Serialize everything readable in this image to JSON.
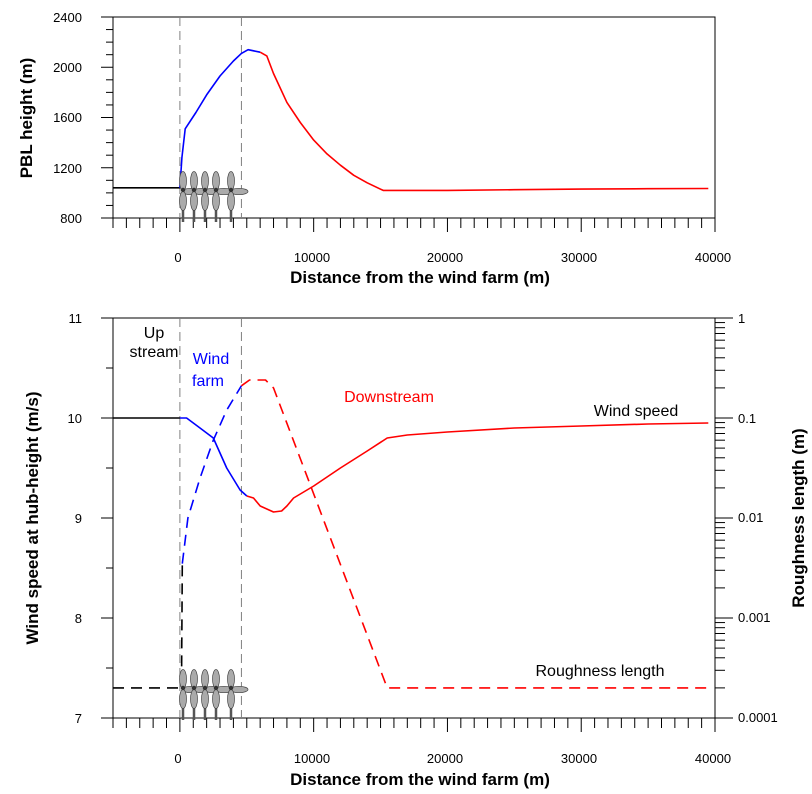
{
  "colors": {
    "upstream": "#000000",
    "wind_farm": "#0000ff",
    "downstream": "#ff0000",
    "farm_boundary": "#808080",
    "turbine": "#aaaaaa"
  },
  "chart_data": [
    {
      "type": "line",
      "title": "",
      "xlabel": "Distance from the wind farm (m)",
      "ylabel": "PBL height (m)",
      "xlim": [
        -5000,
        40000
      ],
      "ylim": [
        800,
        2400
      ],
      "x_ticks": [
        "0",
        "10000",
        "20000",
        "30000",
        "40000"
      ],
      "y_ticks": [
        "800",
        "1200",
        "1600",
        "2000",
        "2400"
      ],
      "wind_farm_boundaries": [
        0,
        4600
      ],
      "series": [
        {
          "region": "upstream",
          "color": "#000000",
          "style": "solid",
          "points": [
            [
              -5000,
              1040
            ],
            [
              0,
              1040
            ]
          ]
        },
        {
          "region": "wind farm",
          "color": "#0000ff",
          "style": "solid",
          "points": [
            [
              0,
              1040
            ],
            [
              150,
              1280
            ],
            [
              400,
              1510
            ],
            [
              1200,
              1640
            ],
            [
              2000,
              1780
            ],
            [
              3000,
              1930
            ],
            [
              4000,
              2050
            ],
            [
              4600,
              2110
            ],
            [
              5100,
              2140
            ],
            [
              6000,
              2120
            ]
          ]
        },
        {
          "region": "downstream",
          "color": "#ff0000",
          "style": "solid",
          "points": [
            [
              6000,
              2120
            ],
            [
              6500,
              2090
            ],
            [
              7000,
              1950
            ],
            [
              8000,
              1720
            ],
            [
              9000,
              1560
            ],
            [
              10000,
              1420
            ],
            [
              11000,
              1310
            ],
            [
              12000,
              1220
            ],
            [
              13000,
              1140
            ],
            [
              14000,
              1080
            ],
            [
              15200,
              1020
            ],
            [
              20000,
              1020
            ],
            [
              25000,
              1025
            ],
            [
              30000,
              1030
            ],
            [
              35000,
              1033
            ],
            [
              39500,
              1035
            ]
          ]
        }
      ]
    },
    {
      "type": "line",
      "title": "",
      "xlabel": "Distance from the wind farm (m)",
      "ylabel": "Wind speed at hub-height (m/s)",
      "y2label": "Roughness length (m)",
      "xlim": [
        -5000,
        40000
      ],
      "ylim": [
        7,
        11
      ],
      "y2lim": [
        0.0001,
        1
      ],
      "y2_scale": "log",
      "x_ticks": [
        "0",
        "10000",
        "20000",
        "30000",
        "40000"
      ],
      "y_ticks": [
        "7",
        "8",
        "9",
        "10",
        "11"
      ],
      "y2_ticks": [
        "0.0001",
        "0.001",
        "0.01",
        "0.1",
        "1"
      ],
      "wind_farm_boundaries": [
        0,
        4600
      ],
      "annotations": [
        {
          "text": "Up",
          "color": "#000000"
        },
        {
          "text": "stream",
          "color": "#000000"
        },
        {
          "text": "Wind",
          "color": "#0000ff"
        },
        {
          "text": "farm",
          "color": "#0000ff"
        },
        {
          "text": "Downstream",
          "color": "#ff0000"
        },
        {
          "text": "Wind speed",
          "color": "#000000"
        },
        {
          "text": "Roughness length",
          "color": "#000000"
        }
      ],
      "series": [
        {
          "name": "Wind speed",
          "region": "upstream",
          "axis": "left",
          "color": "#000000",
          "style": "solid",
          "points": [
            [
              -5000,
              10.0
            ],
            [
              0,
              10.0
            ]
          ]
        },
        {
          "name": "Wind speed",
          "region": "wind farm",
          "axis": "left",
          "color": "#0000ff",
          "style": "solid",
          "points": [
            [
              0,
              10.0
            ],
            [
              500,
              10.0
            ],
            [
              1500,
              9.9
            ],
            [
              2500,
              9.8
            ],
            [
              3500,
              9.5
            ],
            [
              4500,
              9.28
            ],
            [
              5000,
              9.22
            ]
          ]
        },
        {
          "name": "Wind speed",
          "region": "downstream",
          "axis": "left",
          "color": "#ff0000",
          "style": "solid",
          "points": [
            [
              5000,
              9.22
            ],
            [
              5500,
              9.2
            ],
            [
              6000,
              9.12
            ],
            [
              7000,
              9.06
            ],
            [
              7600,
              9.07
            ],
            [
              8000,
              9.12
            ],
            [
              8500,
              9.2
            ],
            [
              10000,
              9.32
            ],
            [
              12000,
              9.5
            ],
            [
              14000,
              9.67
            ],
            [
              15500,
              9.8
            ],
            [
              17000,
              9.83
            ],
            [
              20000,
              9.86
            ],
            [
              25000,
              9.9
            ],
            [
              30000,
              9.92
            ],
            [
              35000,
              9.94
            ],
            [
              39500,
              9.95
            ]
          ]
        },
        {
          "name": "Roughness length",
          "region": "upstream",
          "axis": "right",
          "color": "#000000",
          "style": "dashed",
          "points": [
            [
              -5000,
              0.0002
            ],
            [
              0,
              0.0002
            ],
            [
              120,
              0.0002
            ],
            [
              180,
              0.0035
            ]
          ]
        },
        {
          "name": "Roughness length",
          "region": "wind farm",
          "axis": "right",
          "color": "#0000ff",
          "style": "dashed",
          "points": [
            [
              180,
              0.0035
            ],
            [
              600,
              0.01
            ],
            [
              1500,
              0.025
            ],
            [
              2500,
              0.06
            ],
            [
              3500,
              0.12
            ],
            [
              4600,
              0.21
            ]
          ]
        },
        {
          "name": "Roughness length",
          "region": "downstream",
          "axis": "right",
          "color": "#ff0000",
          "style": "dashed",
          "points": [
            [
              4600,
              0.21
            ],
            [
              5200,
              0.24
            ],
            [
              6400,
              0.24
            ],
            [
              7000,
              0.2
            ],
            [
              15500,
              0.0002
            ],
            [
              39500,
              0.0002
            ]
          ]
        }
      ]
    }
  ]
}
